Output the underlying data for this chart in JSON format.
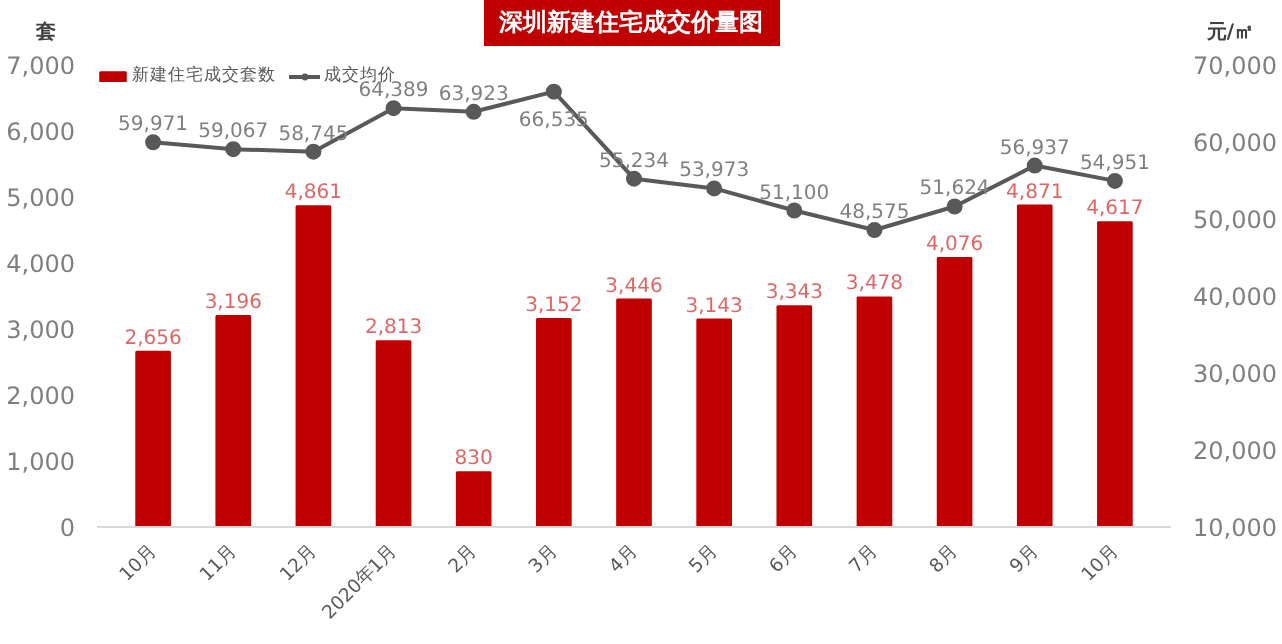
{
  "chart_data": {
    "type": "bar",
    "title": "深圳新建住宅成交价量图",
    "annotations": [
      "套",
      "元/㎡"
    ],
    "categories": [
      "10月",
      "11月",
      "12月",
      "2020年1月",
      "2月",
      "3月",
      "4月",
      "5月",
      "6月",
      "7月",
      "8月",
      "9月",
      "10月"
    ],
    "series": [
      {
        "name": "新建住宅成交套数",
        "color": "#c00000",
        "values": [
          2656,
          3196,
          4861,
          2813,
          830,
          3152,
          3446,
          3143,
          3343,
          3478,
          4076,
          4871,
          4617
        ],
        "value_labels": [
          "2,656",
          "3,196",
          "4,861",
          "2,813",
          "830",
          "3,152",
          "3,446",
          "3,143",
          "3,343",
          "3,478",
          "4,076",
          "4,871",
          "4,617"
        ]
      },
      {
        "name": "成交均价",
        "type": "line",
        "axis": "y2",
        "color": "#595959",
        "marker": "circle",
        "values": [
          59971,
          59067,
          58745,
          64389,
          63923,
          66535,
          55234,
          53973,
          51100,
          48575,
          51624,
          56937,
          54951
        ],
        "value_labels": [
          "59,971",
          "59,067",
          "58,745",
          "64,389",
          "63,923",
          "66,535",
          "55,234",
          "53,973",
          "51,100",
          "48,575",
          "51,624",
          "56,937",
          "54,951"
        ]
      }
    ],
    "ylim": [
      0,
      7000
    ],
    "yticks": [
      {
        "value": 0,
        "label": "0"
      },
      {
        "value": 1000,
        "label": "1,000"
      },
      {
        "value": 2000,
        "label": "2,000"
      },
      {
        "value": 3000,
        "label": "3,000"
      },
      {
        "value": 4000,
        "label": "4,000"
      },
      {
        "value": 5000,
        "label": "5,000"
      },
      {
        "value": 6000,
        "label": "6,000"
      },
      {
        "value": 7000,
        "label": "7,000"
      }
    ],
    "y2lim": [
      10000,
      70000
    ],
    "y2ticks": [
      {
        "value": 10000,
        "label": "10,000"
      },
      {
        "value": 20000,
        "label": "20,000"
      },
      {
        "value": 30000,
        "label": "30,000"
      },
      {
        "value": 40000,
        "label": "40,000"
      },
      {
        "value": 50000,
        "label": "50,000"
      },
      {
        "value": 60000,
        "label": "60,000"
      },
      {
        "value": 70000,
        "label": "70,000"
      }
    ],
    "legend": "top left"
  }
}
